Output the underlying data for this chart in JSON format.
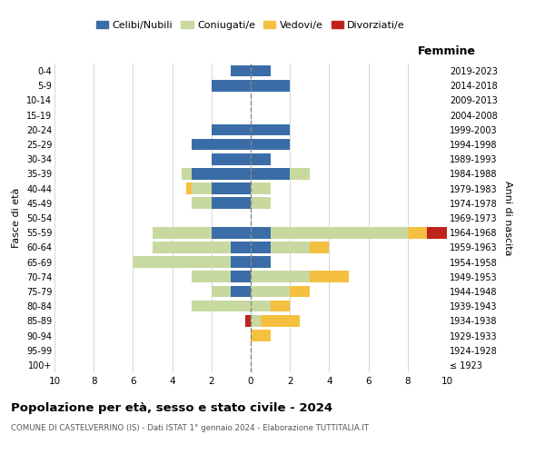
{
  "age_groups": [
    "100+",
    "95-99",
    "90-94",
    "85-89",
    "80-84",
    "75-79",
    "70-74",
    "65-69",
    "60-64",
    "55-59",
    "50-54",
    "45-49",
    "40-44",
    "35-39",
    "30-34",
    "25-29",
    "20-24",
    "15-19",
    "10-14",
    "5-9",
    "0-4"
  ],
  "birth_years": [
    "≤ 1923",
    "1924-1928",
    "1929-1933",
    "1934-1938",
    "1939-1943",
    "1944-1948",
    "1949-1953",
    "1954-1958",
    "1959-1963",
    "1964-1968",
    "1969-1973",
    "1974-1978",
    "1979-1983",
    "1984-1988",
    "1989-1993",
    "1994-1998",
    "1999-2003",
    "2004-2008",
    "2009-2013",
    "2014-2018",
    "2019-2023"
  ],
  "colors": {
    "celibe": "#3a6ca8",
    "coniugato": "#c8d9a0",
    "vedovo": "#f5c040",
    "divorziato": "#c0231b"
  },
  "m_cel": [
    0,
    0,
    0,
    0,
    0,
    1,
    1,
    1,
    1,
    2,
    0,
    2,
    2,
    3,
    2,
    3,
    2,
    0,
    0,
    2,
    1
  ],
  "m_con": [
    0,
    0,
    0,
    0,
    3,
    1,
    2,
    5,
    4,
    3,
    0,
    1,
    1,
    0.5,
    0,
    0,
    0,
    0,
    0,
    0,
    0
  ],
  "m_ved": [
    0,
    0,
    0,
    0,
    0,
    0,
    0,
    0,
    0,
    0,
    0,
    0,
    0.3,
    0,
    0,
    0,
    0,
    0,
    0,
    0,
    0
  ],
  "m_div": [
    0,
    0,
    0,
    0.3,
    0,
    0,
    0,
    0,
    0,
    0,
    0,
    0,
    0,
    0,
    0,
    0,
    0,
    0,
    0,
    0,
    0
  ],
  "f_cel": [
    0,
    0,
    0,
    0,
    0,
    0,
    0,
    1,
    1,
    1,
    0,
    0,
    0,
    2,
    1,
    2,
    2,
    0,
    0,
    2,
    1
  ],
  "f_con": [
    0,
    0,
    0,
    0.5,
    1,
    2,
    3,
    0,
    2,
    7,
    0,
    1,
    1,
    1,
    0,
    0,
    0,
    0,
    0,
    0,
    0
  ],
  "f_ved": [
    0,
    0,
    1,
    2,
    1,
    1,
    2,
    0,
    1,
    1,
    0,
    0,
    0,
    0,
    0,
    0,
    0,
    0,
    0,
    0,
    0
  ],
  "f_div": [
    0,
    0,
    0,
    0,
    0,
    0,
    0,
    0,
    0,
    2,
    0,
    0,
    0,
    0,
    0,
    0,
    0,
    0,
    0,
    0,
    0
  ],
  "xlim": 10,
  "title": "Popolazione per età, sesso e stato civile - 2024",
  "subtitle": "COMUNE DI CASTELVERRINO (IS) - Dati ISTAT 1° gennaio 2024 - Elaborazione TUTTITALIA.IT",
  "xlabel_right": "Femmine",
  "ylabel_left": "Fasce di età",
  "ylabel_right": "Anni di nascita",
  "legend_labels": [
    "Celibi/Nubili",
    "Coniugati/e",
    "Vedovi/e",
    "Divorziati/e"
  ],
  "background_color": "#ffffff",
  "grid_color": "#d0d0d0"
}
